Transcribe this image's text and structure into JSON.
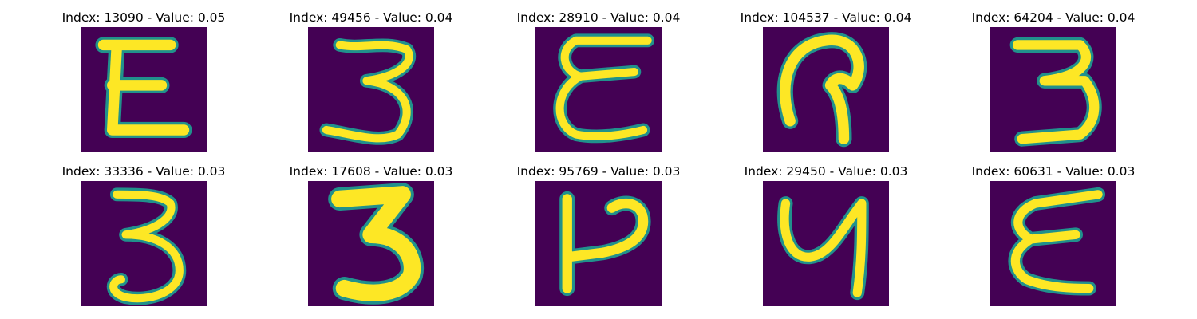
{
  "background_color": "#440154",
  "stroke_color": "#fde725",
  "edge_color": "#21918c",
  "panels": [
    {
      "title": "Index: 13090 - Value: 0.05",
      "glyph": "E"
    },
    {
      "title": "Index: 49456 - Value: 0.04",
      "glyph": "3"
    },
    {
      "title": "Index: 28910 - Value: 0.04",
      "glyph": "ε"
    },
    {
      "title": "Index: 104537 - Value: 0.04",
      "glyph": "?"
    },
    {
      "title": "Index: 64204 - Value: 0.04",
      "glyph": "3"
    },
    {
      "title": "Index: 33336 - Value: 0.03",
      "glyph": "3"
    },
    {
      "title": "Index: 17608 - Value: 0.03",
      "glyph": "3"
    },
    {
      "title": "Index: 95769 - Value: 0.03",
      "glyph": "P"
    },
    {
      "title": "Index: 29450 - Value: 0.03",
      "glyph": "y"
    },
    {
      "title": "Index: 60631 - Value: 0.03",
      "glyph": "ε"
    }
  ]
}
